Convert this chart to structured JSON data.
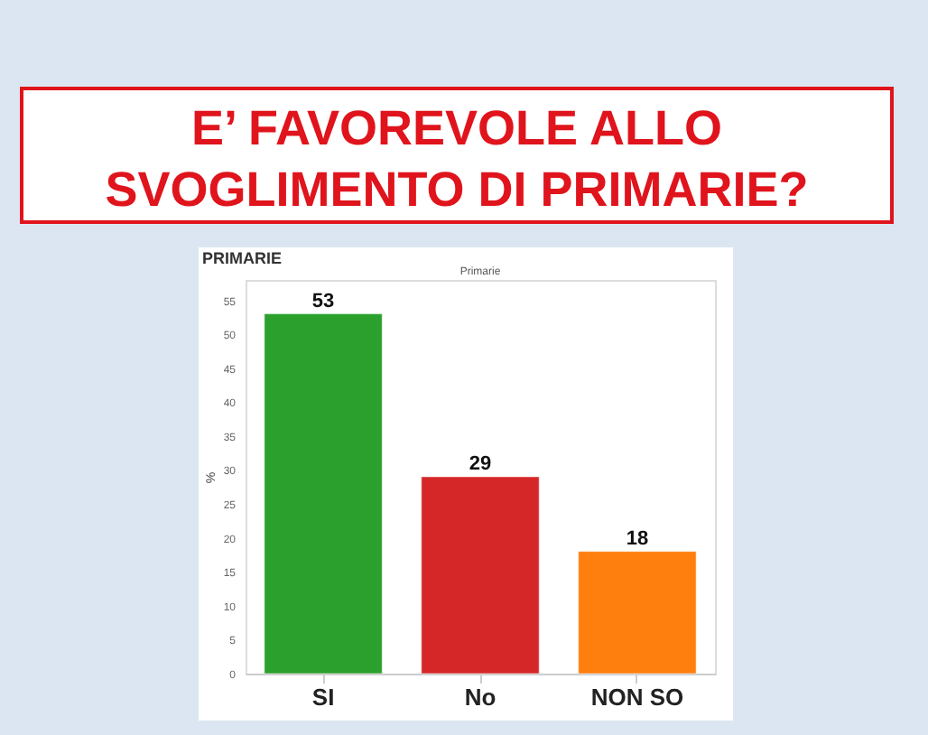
{
  "chart_data": {
    "type": "bar",
    "title": "E’ FAVOREVOLE ALLO SVOGLIMENTO DI PRIMARIE?",
    "subtitle": "PRIMARIE",
    "annotations": [
      "Primarie"
    ],
    "ylabel": "%",
    "categories": [
      "SI",
      "No",
      "NON SO"
    ],
    "values": [
      53,
      29,
      18
    ],
    "colors": [
      "#2ca02c",
      "#d62728",
      "#ff7f0e"
    ],
    "ylim": [
      0,
      58
    ],
    "yticks": [
      0,
      5,
      10,
      15,
      20,
      25,
      30,
      35,
      40,
      45,
      50,
      55
    ],
    "grid": false,
    "data_labels": true
  }
}
